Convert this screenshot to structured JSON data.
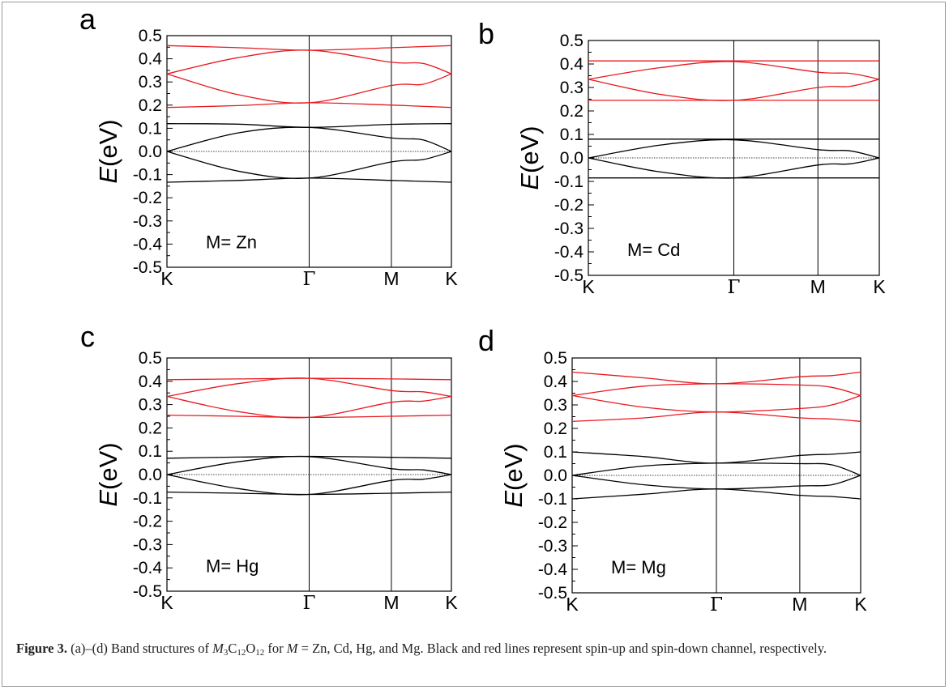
{
  "figure": {
    "caption_label": "Figure 3.",
    "caption_pre": "(a)–(d) Band structures of",
    "caption_formula": {
      "M": "M",
      "M_sub": "3",
      "C": "C",
      "C_sub": "12",
      "O": "O",
      "O_sub": "12"
    },
    "caption_for": "for",
    "caption_M": "M",
    "caption_eq": "= Zn, Cd, Hg, and Mg. Black and red lines represent spin-up and spin-down channel, respectively."
  },
  "colors": {
    "spin_up": "#000000",
    "spin_down": "#e8191f",
    "fermi": "#000000"
  },
  "chart_data": [
    {
      "type": "line",
      "panel": "a",
      "annotation": "M= Zn",
      "ylabel": "E(eV)",
      "ylabel_italic_part": "E",
      "ylabel_rest": "(eV)",
      "ylim": [
        -0.5,
        0.5
      ],
      "yticks": [
        "0.5",
        "0.4",
        "0.3",
        "0.2",
        "0.1",
        "0.0",
        "-0.1",
        "-0.2",
        "-0.3",
        "-0.4",
        "-0.5"
      ],
      "xlim": [
        0,
        1
      ],
      "kpoints": [
        {
          "label": "K",
          "x": 0
        },
        {
          "label": "Γ",
          "x": 0.5
        },
        {
          "label": "M",
          "x": 0.789
        },
        {
          "label": "K",
          "x": 1
        }
      ],
      "fermi_level": 0.0,
      "series": [
        {
          "spin": "up",
          "x": [
            0,
            0.25,
            0.5,
            0.79,
            1
          ],
          "y": [
            0.12,
            0.118,
            0.104,
            0.117,
            0.12
          ]
        },
        {
          "spin": "up",
          "x": [
            0,
            0.25,
            0.5,
            0.79,
            0.9,
            1
          ],
          "y": [
            0,
            0.08,
            0.104,
            0.058,
            0.05,
            0
          ]
        },
        {
          "spin": "up",
          "x": [
            0,
            0.25,
            0.5,
            0.79,
            0.9,
            1
          ],
          "y": [
            0,
            -0.085,
            -0.115,
            -0.045,
            -0.035,
            0
          ]
        },
        {
          "spin": "up",
          "x": [
            0,
            0.25,
            0.5,
            0.79,
            1
          ],
          "y": [
            -0.133,
            -0.125,
            -0.115,
            -0.125,
            -0.133
          ]
        },
        {
          "spin": "down",
          "x": [
            0,
            0.25,
            0.5,
            0.79,
            1
          ],
          "y": [
            0.457,
            0.448,
            0.437,
            0.448,
            0.457
          ]
        },
        {
          "spin": "down",
          "x": [
            0,
            0.25,
            0.5,
            0.79,
            0.9,
            1
          ],
          "y": [
            0.335,
            0.405,
            0.437,
            0.385,
            0.38,
            0.335
          ]
        },
        {
          "spin": "down",
          "x": [
            0,
            0.25,
            0.5,
            0.79,
            0.9,
            1
          ],
          "y": [
            0.335,
            0.245,
            0.21,
            0.285,
            0.29,
            0.335
          ]
        },
        {
          "spin": "down",
          "x": [
            0,
            0.25,
            0.5,
            0.79,
            1
          ],
          "y": [
            0.19,
            0.198,
            0.21,
            0.2,
            0.19
          ]
        }
      ]
    },
    {
      "type": "line",
      "panel": "b",
      "annotation": "M= Cd",
      "ylabel": "E(eV)",
      "ylabel_italic_part": "E",
      "ylabel_rest": "(eV)",
      "ylim": [
        -0.5,
        0.5
      ],
      "yticks": [
        "0.5",
        "0.4",
        "0.3",
        "0.2",
        "0.1",
        "0.0",
        "-0.1",
        "-0.2",
        "-0.3",
        "-0.4",
        "-0.5"
      ],
      "xlim": [
        0,
        1
      ],
      "kpoints": [
        {
          "label": "K",
          "x": 0
        },
        {
          "label": "Γ",
          "x": 0.5
        },
        {
          "label": "M",
          "x": 0.789
        },
        {
          "label": "K",
          "x": 1
        }
      ],
      "fermi_level": 0.0,
      "series": [
        {
          "spin": "up",
          "x": [
            0,
            1
          ],
          "y": [
            0.08,
            0.08
          ]
        },
        {
          "spin": "up",
          "x": [
            0,
            0.25,
            0.5,
            0.79,
            0.9,
            1
          ],
          "y": [
            0,
            0.055,
            0.077,
            0.035,
            0.03,
            0
          ]
        },
        {
          "spin": "up",
          "x": [
            0,
            0.25,
            0.5,
            0.79,
            0.9,
            1
          ],
          "y": [
            0,
            -0.06,
            -0.085,
            -0.03,
            -0.025,
            0
          ]
        },
        {
          "spin": "up",
          "x": [
            0,
            1
          ],
          "y": [
            -0.085,
            -0.085
          ]
        },
        {
          "spin": "down",
          "x": [
            0,
            1
          ],
          "y": [
            0.413,
            0.413
          ]
        },
        {
          "spin": "down",
          "x": [
            0,
            0.25,
            0.5,
            0.79,
            0.9,
            1
          ],
          "y": [
            0.335,
            0.385,
            0.41,
            0.365,
            0.36,
            0.335
          ]
        },
        {
          "spin": "down",
          "x": [
            0,
            0.25,
            0.5,
            0.79,
            0.9,
            1
          ],
          "y": [
            0.335,
            0.27,
            0.245,
            0.3,
            0.305,
            0.335
          ]
        },
        {
          "spin": "down",
          "x": [
            0,
            1
          ],
          "y": [
            0.245,
            0.245
          ]
        }
      ]
    },
    {
      "type": "line",
      "panel": "c",
      "annotation": "M= Hg",
      "ylabel": "E(eV)",
      "ylabel_italic_part": "E",
      "ylabel_rest": "(eV)",
      "ylim": [
        -0.5,
        0.5
      ],
      "yticks": [
        "0.5",
        "0.4",
        "0.3",
        "0.2",
        "0.1",
        "0.0",
        "-0.1",
        "-0.2",
        "-0.3",
        "-0.4",
        "-0.5"
      ],
      "xlim": [
        0,
        1
      ],
      "kpoints": [
        {
          "label": "K",
          "x": 0
        },
        {
          "label": "Γ",
          "x": 0.5
        },
        {
          "label": "M",
          "x": 0.789
        },
        {
          "label": "K",
          "x": 1
        }
      ],
      "fermi_level": 0.0,
      "series": [
        {
          "spin": "up",
          "x": [
            0,
            0.25,
            0.5,
            0.79,
            1
          ],
          "y": [
            0.07,
            0.075,
            0.078,
            0.074,
            0.07
          ]
        },
        {
          "spin": "up",
          "x": [
            0,
            0.25,
            0.5,
            0.79,
            0.9,
            1
          ],
          "y": [
            0,
            0.055,
            0.077,
            0.025,
            0.02,
            0
          ]
        },
        {
          "spin": "up",
          "x": [
            0,
            0.25,
            0.5,
            0.79,
            0.9,
            1
          ],
          "y": [
            0,
            -0.06,
            -0.085,
            -0.025,
            -0.02,
            0
          ]
        },
        {
          "spin": "up",
          "x": [
            0,
            0.25,
            0.5,
            0.79,
            1
          ],
          "y": [
            -0.075,
            -0.08,
            -0.085,
            -0.08,
            -0.075
          ]
        },
        {
          "spin": "down",
          "x": [
            0,
            0.25,
            0.5,
            0.79,
            1
          ],
          "y": [
            0.407,
            0.41,
            0.413,
            0.41,
            0.407
          ]
        },
        {
          "spin": "down",
          "x": [
            0,
            0.25,
            0.5,
            0.79,
            0.9,
            1
          ],
          "y": [
            0.335,
            0.39,
            0.413,
            0.36,
            0.355,
            0.335
          ]
        },
        {
          "spin": "down",
          "x": [
            0,
            0.25,
            0.5,
            0.79,
            0.9,
            1
          ],
          "y": [
            0.335,
            0.27,
            0.245,
            0.31,
            0.315,
            0.335
          ]
        },
        {
          "spin": "down",
          "x": [
            0,
            0.25,
            0.5,
            0.79,
            1
          ],
          "y": [
            0.255,
            0.25,
            0.245,
            0.25,
            0.255
          ]
        }
      ]
    },
    {
      "type": "line",
      "panel": "d",
      "annotation": "M= Mg",
      "ylabel": "E(eV)",
      "ylabel_italic_part": "E",
      "ylabel_rest": "(eV)",
      "ylim": [
        -0.5,
        0.5
      ],
      "yticks": [
        "0.5",
        "0.4",
        "0.3",
        "0.2",
        "0.1",
        "0.0",
        "-0.1",
        "-0.2",
        "-0.3",
        "-0.4",
        "-0.5"
      ],
      "xlim": [
        0,
        1
      ],
      "kpoints": [
        {
          "label": "K",
          "x": 0
        },
        {
          "label": "Γ",
          "x": 0.5
        },
        {
          "label": "M",
          "x": 0.789
        },
        {
          "label": "K",
          "x": 1
        }
      ],
      "fermi_level": 0.0,
      "series": [
        {
          "spin": "up",
          "x": [
            0,
            0.25,
            0.5,
            0.79,
            0.9,
            1
          ],
          "y": [
            0.1,
            0.08,
            0.052,
            0.085,
            0.09,
            0.1
          ]
        },
        {
          "spin": "up",
          "x": [
            0,
            0.25,
            0.5,
            0.79,
            0.9,
            1
          ],
          "y": [
            0,
            0.04,
            0.052,
            0.05,
            0.045,
            0
          ]
        },
        {
          "spin": "up",
          "x": [
            0,
            0.25,
            0.5,
            0.79,
            0.9,
            1
          ],
          "y": [
            0,
            -0.04,
            -0.058,
            -0.045,
            -0.04,
            0
          ]
        },
        {
          "spin": "up",
          "x": [
            0,
            0.25,
            0.5,
            0.79,
            0.9,
            1
          ],
          "y": [
            -0.1,
            -0.08,
            -0.058,
            -0.085,
            -0.09,
            -0.1
          ]
        },
        {
          "spin": "down",
          "x": [
            0,
            0.25,
            0.5,
            0.79,
            0.9,
            1
          ],
          "y": [
            0.44,
            0.415,
            0.39,
            0.42,
            0.425,
            0.44
          ]
        },
        {
          "spin": "down",
          "x": [
            0,
            0.25,
            0.5,
            0.79,
            0.9,
            1
          ],
          "y": [
            0.34,
            0.38,
            0.39,
            0.385,
            0.375,
            0.34
          ]
        },
        {
          "spin": "down",
          "x": [
            0,
            0.25,
            0.5,
            0.79,
            0.9,
            1
          ],
          "y": [
            0.34,
            0.29,
            0.27,
            0.285,
            0.3,
            0.34
          ]
        },
        {
          "spin": "down",
          "x": [
            0,
            0.25,
            0.5,
            0.79,
            0.9,
            1
          ],
          "y": [
            0.23,
            0.245,
            0.27,
            0.245,
            0.24,
            0.23
          ]
        }
      ]
    }
  ]
}
